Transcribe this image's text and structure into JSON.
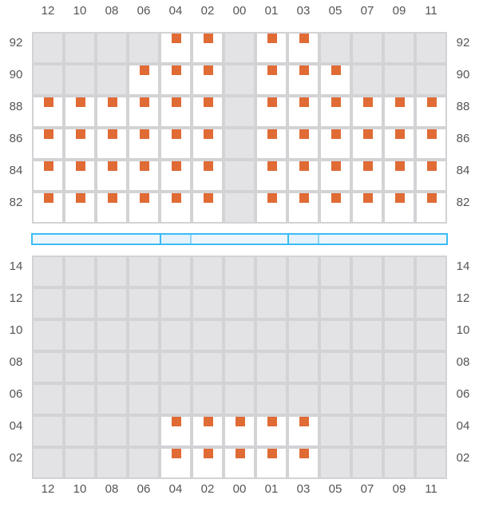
{
  "columns": [
    "12",
    "10",
    "08",
    "06",
    "04",
    "02",
    "00",
    "01",
    "03",
    "05",
    "07",
    "09",
    "11"
  ],
  "colors": {
    "open": "#ffffff",
    "unavailable": "#e3e3e5",
    "grid_line": "#d3d3d6",
    "marker": "#e06b35",
    "bar_border": "#3bbcf5",
    "bar_fill": "#eef6fd",
    "bar_highlight": "#e3f2fc"
  },
  "top_section": {
    "rows": [
      {
        "label": "92",
        "open": [
          "04",
          "02",
          "01",
          "03"
        ]
      },
      {
        "label": "90",
        "open": [
          "06",
          "04",
          "02",
          "01",
          "03",
          "05"
        ]
      },
      {
        "label": "88",
        "open": [
          "12",
          "10",
          "08",
          "06",
          "04",
          "02",
          "01",
          "03",
          "05",
          "07",
          "09",
          "11"
        ]
      },
      {
        "label": "86",
        "open": [
          "12",
          "10",
          "08",
          "06",
          "04",
          "02",
          "01",
          "03",
          "05",
          "07",
          "09",
          "11"
        ]
      },
      {
        "label": "84",
        "open": [
          "12",
          "10",
          "08",
          "06",
          "04",
          "02",
          "01",
          "03",
          "05",
          "07",
          "09",
          "11"
        ]
      },
      {
        "label": "82",
        "open": [
          "12",
          "10",
          "08",
          "06",
          "04",
          "02",
          "01",
          "03",
          "05",
          "07",
          "09",
          "11"
        ]
      }
    ]
  },
  "divider_bar": {
    "highlighted_columns": [
      "04",
      "03"
    ]
  },
  "bottom_section": {
    "rows": [
      {
        "label": "14",
        "open": []
      },
      {
        "label": "12",
        "open": []
      },
      {
        "label": "10",
        "open": []
      },
      {
        "label": "08",
        "open": []
      },
      {
        "label": "06",
        "open": []
      },
      {
        "label": "04",
        "open": [
          "04",
          "02",
          "00",
          "01",
          "03"
        ]
      },
      {
        "label": "02",
        "open": [
          "04",
          "02",
          "00",
          "01",
          "03"
        ]
      }
    ]
  }
}
